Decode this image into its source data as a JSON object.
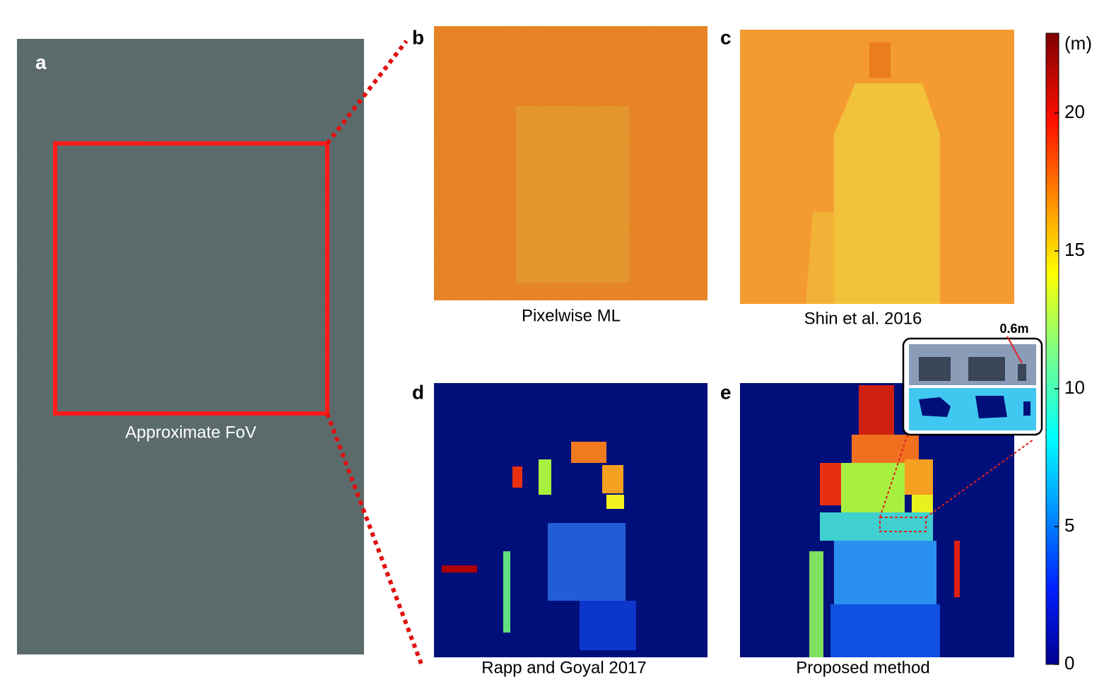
{
  "panels": [
    {
      "letter": "a",
      "caption": "Approximate FoV"
    },
    {
      "letter": "b",
      "caption": "Pixelwise ML"
    },
    {
      "letter": "c",
      "caption": "Shin et al. 2016"
    },
    {
      "letter": "d",
      "caption": "Rapp and Goyal 2017"
    },
    {
      "letter": "e",
      "caption": "Proposed method"
    }
  ],
  "inset": {
    "label": "0.6m"
  },
  "colorbar": {
    "label": "(m)",
    "lim": [
      0,
      22.9
    ],
    "ticks": [
      0,
      5,
      10,
      15,
      20
    ]
  }
}
